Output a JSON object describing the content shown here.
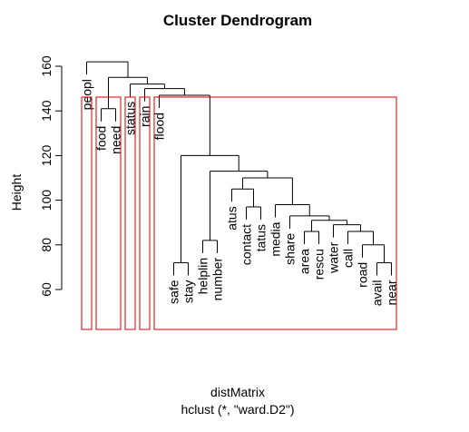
{
  "chart_data": {
    "type": "dendrogram",
    "title": "Cluster Dendrogram",
    "xlabel": "distMatrix",
    "sub": "hclust (*, \"ward.D2\")",
    "ylabel": "Height",
    "yticks": [
      60,
      80,
      100,
      120,
      140,
      160
    ],
    "ylim": [
      43,
      166
    ],
    "leaves": [
      "peopl",
      "food",
      "need",
      "status",
      "rain",
      "flood",
      "safe",
      "stay",
      "helplin",
      "number",
      "atus",
      "contact",
      "tatus",
      "media",
      "share",
      "area",
      "rescu",
      "water",
      "call",
      "road",
      "avail",
      "near"
    ],
    "merges": [
      {
        "left": "leaf:1",
        "right": "leaf:2",
        "height": 141
      },
      {
        "left": "leaf:6",
        "right": "leaf:7",
        "height": 72
      },
      {
        "left": "leaf:8",
        "right": "leaf:9",
        "height": 82
      },
      {
        "left": "leaf:20",
        "right": "leaf:21",
        "height": 72
      },
      {
        "left": "leaf:19",
        "right": "node:3",
        "height": 80
      },
      {
        "left": "leaf:18",
        "right": "node:4",
        "height": 86
      },
      {
        "left": "leaf:17",
        "right": "node:5",
        "height": 89
      },
      {
        "left": "leaf:15",
        "right": "leaf:16",
        "height": 86
      },
      {
        "left": "node:7",
        "right": "node:6",
        "height": 91
      },
      {
        "left": "leaf:14",
        "right": "node:8",
        "height": 93
      },
      {
        "left": "leaf:13",
        "right": "node:9",
        "height": 98
      },
      {
        "left": "leaf:11",
        "right": "leaf:12",
        "height": 97
      },
      {
        "left": "leaf:10",
        "right": "node:11",
        "height": 105
      },
      {
        "left": "node:12",
        "right": "node:10",
        "height": 110
      },
      {
        "left": "node:2",
        "right": "node:13",
        "height": 113
      },
      {
        "left": "node:1",
        "right": "node:14",
        "height": 120
      },
      {
        "left": "leaf:5",
        "right": "node:15",
        "height": 147
      },
      {
        "left": "leaf:4",
        "right": "node:16",
        "height": 150
      },
      {
        "left": "leaf:3",
        "right": "node:17",
        "height": 152
      },
      {
        "left": "node:0",
        "right": "node:18",
        "height": 155
      },
      {
        "left": "leaf:0",
        "right": "node:19",
        "height": 162
      }
    ],
    "cluster_boxes": [
      [
        0,
        0
      ],
      [
        1,
        2
      ],
      [
        3,
        3
      ],
      [
        4,
        4
      ],
      [
        5,
        21
      ]
    ],
    "colors": {
      "tree": "#000000",
      "axis": "#000000",
      "rect": "#cc0000"
    }
  }
}
